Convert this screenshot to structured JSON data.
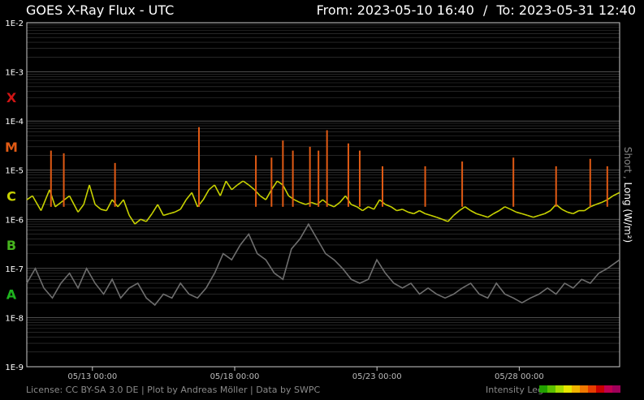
{
  "header": {
    "title": "GOES X-Ray Flux - UTC",
    "from_label": "From:",
    "from_value": "2023-05-10 16:40",
    "separator": "/",
    "to_label": "To:",
    "to_value": "2023-05-31 12:40"
  },
  "footer": {
    "credits": "License: CC BY-SA 3.0 DE | Plot by Andreas Möller | Data by SWPC",
    "legend_label": "Intensity Leg",
    "legend_colors": [
      "#22a000",
      "#5cc000",
      "#a6dc00",
      "#e6e600",
      "#f0b400",
      "#f07800",
      "#e63c00",
      "#c80000",
      "#c00050",
      "#a0005a"
    ]
  },
  "side_label": {
    "short": "Short",
    "separator": ",",
    "long": "Long (W/m²)"
  },
  "colors": {
    "background": "#000000",
    "grid": "#5a5a5a",
    "short_series": "#6e6e6e",
    "class_X": "#d01414",
    "class_M": "#e05a14",
    "class_C": "#c8d200",
    "class_B": "#46b41e",
    "class_A": "#1eb41e"
  },
  "chart_data": {
    "type": "line",
    "title": "GOES X-Ray Flux - UTC",
    "x_range": [
      "2023-05-10 16:40",
      "2023-05-31 12:40"
    ],
    "xtick_labels": [
      "05/13 00:00",
      "05/18 00:00",
      "05/23 00:00",
      "05/28 00:00"
    ],
    "xticks_day": [
      2.3056,
      7.3056,
      12.3056,
      17.3056
    ],
    "x_span_days": 20.8333,
    "y_scale": "log",
    "ylim": [
      1e-09,
      0.01
    ],
    "ytick_labels": [
      "1E-2",
      "1E-3",
      "1E-4",
      "1E-5",
      "1E-6",
      "1E-7",
      "1E-8",
      "1E-9"
    ],
    "ytick_values": [
      0.01,
      0.001,
      0.0001,
      1e-05,
      1e-06,
      1e-07,
      1e-08,
      1e-09
    ],
    "flare_classes": [
      {
        "label": "X",
        "value": 0.0003,
        "color": "#d01414"
      },
      {
        "label": "M",
        "value": 3e-05,
        "color": "#e05a14"
      },
      {
        "label": "C",
        "value": 3e-06,
        "color": "#c8d200"
      },
      {
        "label": "B",
        "value": 3e-07,
        "color": "#46b41e"
      },
      {
        "label": "A",
        "value": 3e-08,
        "color": "#1eb41e"
      }
    ],
    "grid": true,
    "series": [
      {
        "name": "Long",
        "day": [
          0.0,
          0.2,
          0.5,
          0.8,
          1.0,
          1.2,
          1.5,
          1.8,
          2.0,
          2.2,
          2.4,
          2.6,
          2.8,
          3.0,
          3.2,
          3.4,
          3.6,
          3.8,
          4.0,
          4.2,
          4.4,
          4.6,
          4.8,
          5.0,
          5.2,
          5.4,
          5.6,
          5.8,
          6.0,
          6.2,
          6.4,
          6.6,
          6.8,
          7.0,
          7.2,
          7.4,
          7.6,
          7.8,
          8.0,
          8.2,
          8.4,
          8.6,
          8.8,
          9.0,
          9.2,
          9.4,
          9.6,
          9.8,
          10.0,
          10.2,
          10.4,
          10.6,
          10.8,
          11.0,
          11.2,
          11.4,
          11.6,
          11.8,
          12.0,
          12.2,
          12.4,
          12.6,
          12.8,
          13.0,
          13.2,
          13.4,
          13.6,
          13.8,
          14.0,
          14.2,
          14.4,
          14.6,
          14.8,
          15.0,
          15.2,
          15.4,
          15.6,
          15.8,
          16.0,
          16.2,
          16.4,
          16.6,
          16.8,
          17.0,
          17.2,
          17.4,
          17.6,
          17.8,
          18.0,
          18.2,
          18.4,
          18.6,
          18.8,
          19.0,
          19.2,
          19.4,
          19.6,
          19.8,
          20.0,
          20.2,
          20.4,
          20.6,
          20.83
        ],
        "values": [
          2.5e-06,
          3e-06,
          1.5e-06,
          4e-06,
          1.8e-06,
          2.2e-06,
          3e-06,
          1.4e-06,
          2e-06,
          5e-06,
          2e-06,
          1.6e-06,
          1.5e-06,
          2.5e-06,
          1.8e-06,
          2.5e-06,
          1.2e-06,
          8e-07,
          1e-06,
          9e-07,
          1.3e-06,
          2e-06,
          1.2e-06,
          1.3e-06,
          1.4e-06,
          1.6e-06,
          2.5e-06,
          3.5e-06,
          1.8e-06,
          2.5e-06,
          4e-06,
          5e-06,
          3e-06,
          6e-06,
          4e-06,
          5e-06,
          6e-06,
          5e-06,
          4e-06,
          3e-06,
          2.5e-06,
          4e-06,
          6e-06,
          5e-06,
          3e-06,
          2.5e-06,
          2.2e-06,
          2e-06,
          2.2e-06,
          2e-06,
          2.5e-06,
          2e-06,
          1.8e-06,
          2.2e-06,
          3e-06,
          2e-06,
          1.8e-06,
          1.5e-06,
          1.8e-06,
          1.6e-06,
          2.5e-06,
          2e-06,
          1.8e-06,
          1.5e-06,
          1.6e-06,
          1.4e-06,
          1.3e-06,
          1.5e-06,
          1.3e-06,
          1.2e-06,
          1.1e-06,
          1e-06,
          9e-07,
          1.2e-06,
          1.5e-06,
          1.8e-06,
          1.5e-06,
          1.3e-06,
          1.2e-06,
          1.1e-06,
          1.3e-06,
          1.5e-06,
          1.8e-06,
          1.6e-06,
          1.4e-06,
          1.3e-06,
          1.2e-06,
          1.1e-06,
          1.2e-06,
          1.3e-06,
          1.5e-06,
          2e-06,
          1.6e-06,
          1.4e-06,
          1.3e-06,
          1.5e-06,
          1.5e-06,
          1.8e-06,
          2e-06,
          2.2e-06,
          2.5e-06,
          3e-06,
          3.5e-06
        ]
      },
      {
        "name": "Short",
        "day": [
          0.0,
          0.3,
          0.6,
          0.9,
          1.2,
          1.5,
          1.8,
          2.1,
          2.4,
          2.7,
          3.0,
          3.3,
          3.6,
          3.9,
          4.2,
          4.5,
          4.8,
          5.1,
          5.4,
          5.7,
          6.0,
          6.3,
          6.6,
          6.9,
          7.2,
          7.5,
          7.8,
          8.1,
          8.4,
          8.7,
          9.0,
          9.3,
          9.6,
          9.9,
          10.2,
          10.5,
          10.8,
          11.1,
          11.4,
          11.7,
          12.0,
          12.3,
          12.6,
          12.9,
          13.2,
          13.5,
          13.8,
          14.1,
          14.4,
          14.7,
          15.0,
          15.3,
          15.6,
          15.9,
          16.2,
          16.5,
          16.8,
          17.1,
          17.4,
          17.7,
          18.0,
          18.3,
          18.6,
          18.9,
          19.2,
          19.5,
          19.8,
          20.1,
          20.4,
          20.83
        ],
        "values": [
          5e-08,
          1e-07,
          4e-08,
          2.5e-08,
          5e-08,
          8e-08,
          4e-08,
          1e-07,
          5e-08,
          3e-08,
          6e-08,
          2.5e-08,
          4e-08,
          5e-08,
          2.5e-08,
          1.8e-08,
          3e-08,
          2.5e-08,
          5e-08,
          3e-08,
          2.5e-08,
          4e-08,
          8e-08,
          2e-07,
          1.5e-07,
          3e-07,
          5e-07,
          2e-07,
          1.5e-07,
          8e-08,
          6e-08,
          2.5e-07,
          4e-07,
          8e-07,
          4e-07,
          2e-07,
          1.5e-07,
          1e-07,
          6e-08,
          5e-08,
          6e-08,
          1.5e-07,
          8e-08,
          5e-08,
          4e-08,
          5e-08,
          3e-08,
          4e-08,
          3e-08,
          2.5e-08,
          3e-08,
          4e-08,
          5e-08,
          3e-08,
          2.5e-08,
          5e-08,
          3e-08,
          2.5e-08,
          2e-08,
          2.5e-08,
          3e-08,
          4e-08,
          3e-08,
          5e-08,
          4e-08,
          6e-08,
          5e-08,
          8e-08,
          1e-07,
          1.5e-07
        ]
      }
    ],
    "peaks": [
      {
        "day": 0.85,
        "value": 2.5e-05
      },
      {
        "day": 1.3,
        "value": 2.2e-05
      },
      {
        "day": 3.1,
        "value": 1.4e-05
      },
      {
        "day": 6.05,
        "value": 7.5e-05
      },
      {
        "day": 8.05,
        "value": 2e-05
      },
      {
        "day": 8.6,
        "value": 1.8e-05
      },
      {
        "day": 9.0,
        "value": 4e-05
      },
      {
        "day": 9.35,
        "value": 2.5e-05
      },
      {
        "day": 9.95,
        "value": 3e-05
      },
      {
        "day": 10.25,
        "value": 2.5e-05
      },
      {
        "day": 10.55,
        "value": 6.5e-05
      },
      {
        "day": 11.3,
        "value": 3.5e-05
      },
      {
        "day": 11.7,
        "value": 2.5e-05
      },
      {
        "day": 12.5,
        "value": 1.2e-05
      },
      {
        "day": 14.0,
        "value": 1.2e-05
      },
      {
        "day": 15.3,
        "value": 1.5e-05
      },
      {
        "day": 17.1,
        "value": 1.8e-05
      },
      {
        "day": 18.6,
        "value": 1.2e-05
      },
      {
        "day": 19.8,
        "value": 1.7e-05
      },
      {
        "day": 20.4,
        "value": 1.2e-05
      }
    ]
  }
}
